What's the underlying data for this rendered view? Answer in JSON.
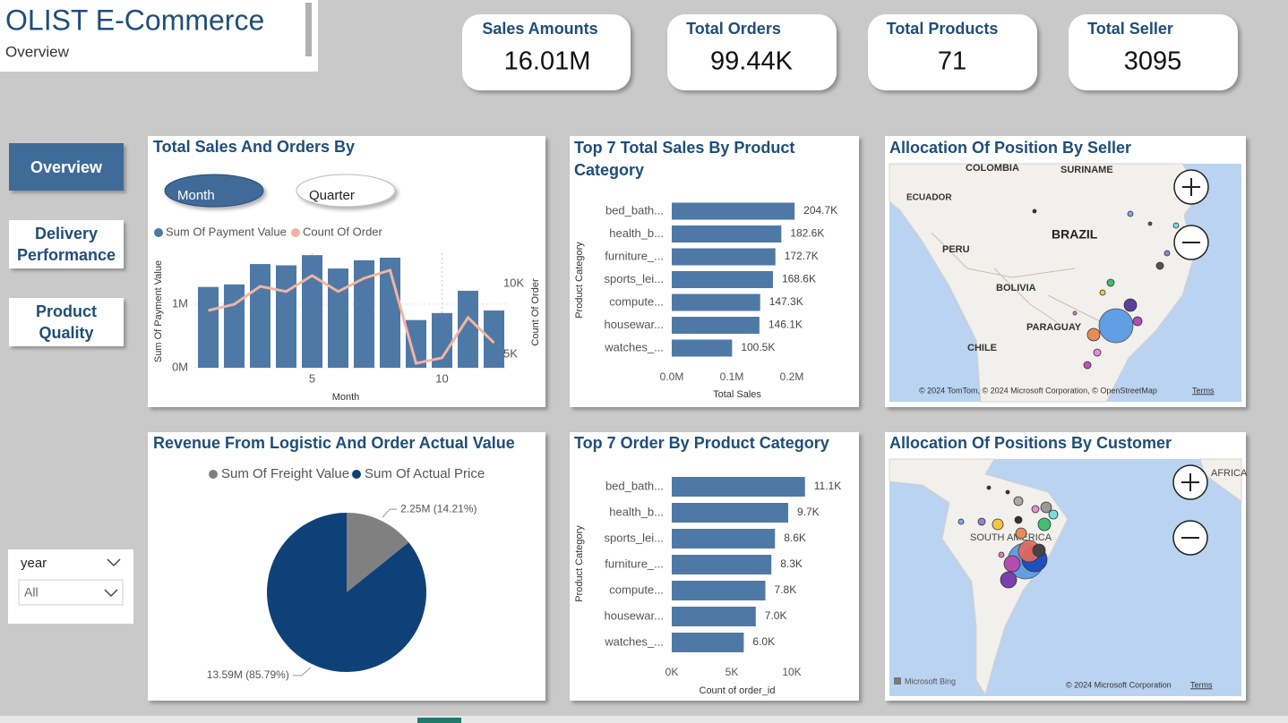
{
  "header": {
    "title": "OLIST E-Commerce",
    "subtitle": "Overview"
  },
  "kpis": [
    {
      "label": "Sales Amounts",
      "value": "16.01M"
    },
    {
      "label": "Total Orders",
      "value": "99.44K"
    },
    {
      "label": "Total Products",
      "value": "71"
    },
    {
      "label": "Total Seller",
      "value": "3095"
    }
  ],
  "nav": [
    "Overview",
    "Delivery Performance",
    "Product Quality"
  ],
  "filter": {
    "label": "year",
    "value": "All"
  },
  "chart_data": [
    {
      "type": "combo",
      "title": "Total Sales And Orders By",
      "buttons": [
        "Month",
        "Quarter"
      ],
      "x": [
        1,
        2,
        3,
        4,
        5,
        6,
        7,
        8,
        9,
        10,
        11,
        12
      ],
      "xlim": [
        0.5,
        12.5
      ],
      "xticks": [
        5,
        10
      ],
      "x_label": "Month",
      "y_label": "Sum Of Payment Value",
      "y2_label": "Count Of Order",
      "ylim": [
        0,
        1800000
      ],
      "yticks": [
        {
          "value": 0,
          "label": "0M"
        },
        {
          "value": 1000000,
          "label": "1M"
        }
      ],
      "y2lim": [
        4050,
        12150
      ],
      "y2ticks": [
        {
          "value": 5000,
          "label": "5K"
        },
        {
          "value": 10000,
          "label": "10K"
        }
      ],
      "grid": true,
      "series": [
        {
          "name": "Sum Of Payment Value",
          "type": "bar",
          "color": "#4e79a7",
          "values": [
            1270000,
            1310000,
            1630000,
            1610000,
            1770000,
            1560000,
            1690000,
            1730000,
            750000,
            860000,
            1210000,
            900000
          ]
        },
        {
          "name": "Count Of Order",
          "type": "line",
          "axis": "y2",
          "color": "#f2b4a0",
          "values": [
            8100,
            8540,
            9810,
            9440,
            10570,
            9440,
            10380,
            10950,
            4370,
            4750,
            7600,
            5820
          ]
        }
      ]
    },
    {
      "type": "bar",
      "horizontal": true,
      "title": "Top 7 Total Sales By Product Category",
      "categories": [
        "bed_bath...",
        "health_b...",
        "furniture_...",
        "sports_lei...",
        "compute...",
        "housewar...",
        "watches_..."
      ],
      "values": [
        204700,
        182600,
        172700,
        168600,
        147300,
        146100,
        100500
      ],
      "value_labels": [
        "204.7K",
        "182.6K",
        "172.7K",
        "168.6K",
        "147.3K",
        "146.1K",
        "100.5K"
      ],
      "xlim": [
        0,
        250000
      ],
      "xticks": [
        {
          "value": 0,
          "label": "0.0M"
        },
        {
          "value": 100000,
          "label": "0.1M"
        },
        {
          "value": 200000,
          "label": "0.2M"
        }
      ],
      "x_label": "Total Sales",
      "y_label": "Product Category",
      "color": "#4e79a7"
    },
    {
      "type": "bar",
      "horizontal": true,
      "title": "Top 7 Order By Product Category",
      "categories": [
        "bed_bath...",
        "health_b...",
        "sports_lei...",
        "furniture_...",
        "compute...",
        "housewar...",
        "watches_..."
      ],
      "values": [
        11100,
        9700,
        8600,
        8300,
        7800,
        7000,
        6000
      ],
      "value_labels": [
        "11.1K",
        "9.7K",
        "8.6K",
        "8.3K",
        "7.8K",
        "7.0K",
        "6.0K"
      ],
      "xlim": [
        0,
        12500
      ],
      "xticks": [
        {
          "value": 0,
          "label": "0K"
        },
        {
          "value": 5000,
          "label": "5K"
        },
        {
          "value": 10000,
          "label": "10K"
        }
      ],
      "x_label": "Count of order_id",
      "y_label": "Product Category",
      "color": "#4e79a7"
    },
    {
      "type": "pie",
      "title": "Revenue From Logistic And Order Actual Value",
      "categories": [
        "Sum Of Freight Value",
        "Sum Of Actual Price"
      ],
      "values": [
        2250000,
        13590000
      ],
      "value_labels": [
        "2.25M (14.21%)",
        "13.59M (85.79%)"
      ],
      "colors": [
        "#808080",
        "#0d4178"
      ]
    }
  ],
  "maps": [
    {
      "title": "Allocation Of Position By Seller",
      "labels": [
        "COLOMBIA",
        "SURINAME",
        "ECUADOR",
        "BRAZIL",
        "PERU",
        "BOLIVIA",
        "PARAGUAY",
        "CHILE"
      ],
      "attribution": "© 2024 TomTom, © 2024 Microsoft Corporation, © OpenStreetMap",
      "terms": "Terms"
    },
    {
      "title": "Allocation Of Positions By Customer",
      "labels": [
        "SOUTH AMERICA",
        "AFRICA"
      ],
      "logo": "Microsoft Bing",
      "attribution": "© 2024 Microsoft Corporation",
      "terms": "Terms"
    }
  ]
}
